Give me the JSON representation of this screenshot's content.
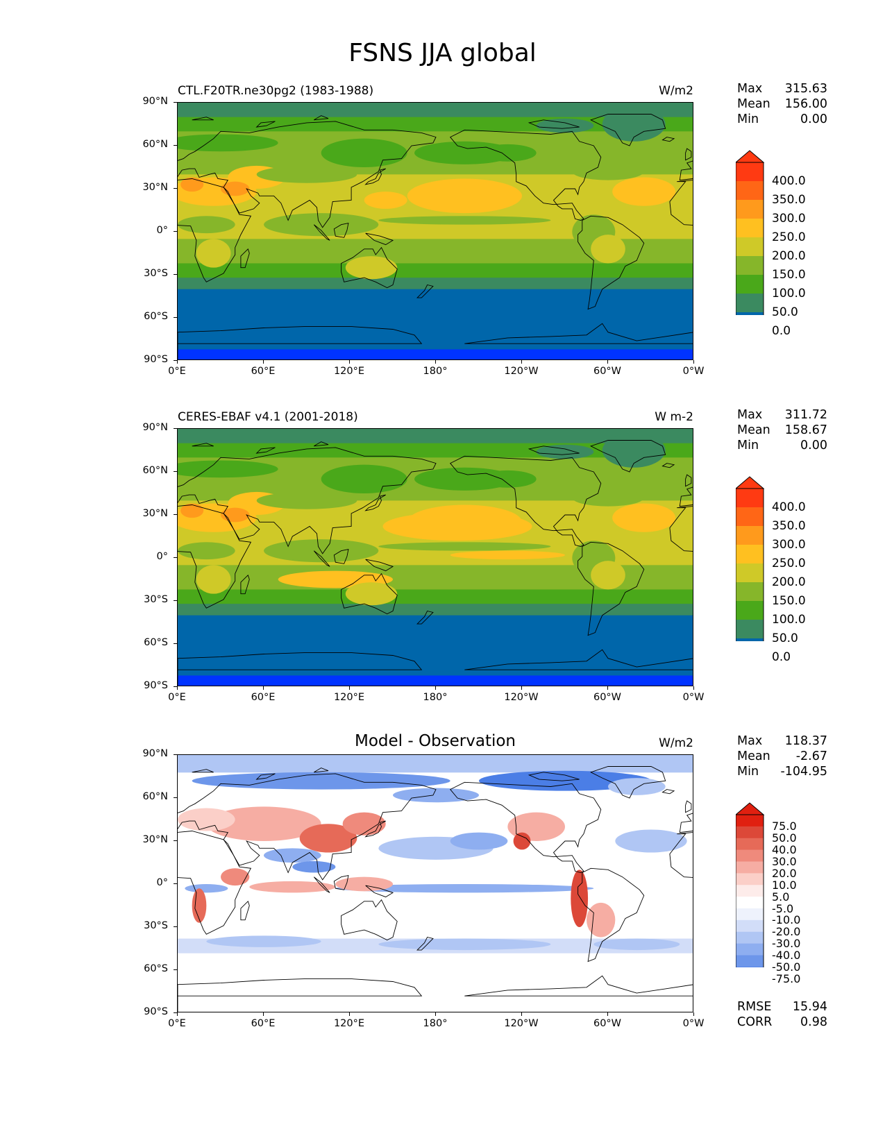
{
  "title": "FSNS JJA global",
  "colors": {
    "abs_levels": [
      "#0033ff",
      "#0066aa",
      "#3b8a60",
      "#4aa81a",
      "#86b62a",
      "#cfc928",
      "#ffc020",
      "#ff9a1c",
      "#ff6616",
      "#ff3a12"
    ],
    "diff_levels": [
      "#0f3fff",
      "#2d62f0",
      "#4b7ee6",
      "#6d96ea",
      "#8eaef0",
      "#b0c6f4",
      "#d2ddf8",
      "#eef2fc",
      "#ffffff",
      "#fdecea",
      "#fbcfc8",
      "#f6ada3",
      "#ef8a7c",
      "#e66a58",
      "#dc4838",
      "#e02010"
    ],
    "coastline": "#000000"
  },
  "axes": {
    "x_ticks": [
      "0°E",
      "60°E",
      "120°E",
      "180°",
      "120°W",
      "60°W",
      "0°W"
    ],
    "y_ticks": [
      "90°N",
      "60°N",
      "30°N",
      "0°",
      "30°S",
      "60°S",
      "90°S"
    ]
  },
  "panels": [
    {
      "left_title": "CTL.F20TR.ne30pg2 (1983-1988)",
      "right_title": "W/m2",
      "stats": {
        "max_label": "Max",
        "max": "315.63",
        "mean_label": "Mean",
        "mean": "156.00",
        "min_label": "Min",
        "min": "0.00"
      },
      "colorbar_labels": [
        "400.0",
        "350.0",
        "300.0",
        "250.0",
        "200.0",
        "150.0",
        "100.0",
        "50.0",
        "0.0"
      ]
    },
    {
      "left_title": "CERES-EBAF v4.1 (2001-2018)",
      "right_title": "W m-2",
      "stats": {
        "max_label": "Max",
        "max": "311.72",
        "mean_label": "Mean",
        "mean": "158.67",
        "min_label": "Min",
        "min": "0.00"
      },
      "colorbar_labels": [
        "400.0",
        "350.0",
        "300.0",
        "250.0",
        "200.0",
        "150.0",
        "100.0",
        "50.0",
        "0.0"
      ]
    },
    {
      "center_title": "Model - Observation",
      "right_title": "W/m2",
      "stats": {
        "max_label": "Max",
        "max": "118.37",
        "mean_label": "Mean",
        "mean": "-2.67",
        "min_label": "Min",
        "min": "-104.95"
      },
      "colorbar_labels": [
        "75.0",
        "50.0",
        "40.0",
        "30.0",
        "20.0",
        "10.0",
        "5.0",
        "-5.0",
        "-10.0",
        "-20.0",
        "-30.0",
        "-40.0",
        "-50.0",
        "-75.0"
      ],
      "rmse_label": "RMSE",
      "rmse": "15.94",
      "corr_label": "CORR",
      "corr": "0.98"
    }
  ],
  "chart_data": [
    {
      "type": "heatmap",
      "title": "CTL.F20TR.ne30pg2 (1983-1988)",
      "units": "W/m2",
      "xlim": [
        0,
        360
      ],
      "ylim": [
        -90,
        90
      ],
      "levels": [
        0,
        50,
        100,
        150,
        200,
        250,
        300,
        350,
        400
      ],
      "zonal_mean_profile": {
        "lat": [
          90,
          80,
          70,
          60,
          50,
          40,
          30,
          20,
          10,
          0,
          -10,
          -20,
          -30,
          -40,
          -50,
          -60,
          -70,
          -80,
          -90
        ],
        "value": [
          110,
          120,
          150,
          170,
          190,
          225,
          250,
          240,
          215,
          205,
          200,
          185,
          155,
          110,
          60,
          45,
          30,
          10,
          0
        ]
      },
      "max": 315.63,
      "mean": 156.0,
      "min": 0.0
    },
    {
      "type": "heatmap",
      "title": "CERES-EBAF v4.1 (2001-2018)",
      "units": "W m-2",
      "xlim": [
        0,
        360
      ],
      "ylim": [
        -90,
        90
      ],
      "levels": [
        0,
        50,
        100,
        150,
        200,
        250,
        300,
        350,
        400
      ],
      "zonal_mean_profile": {
        "lat": [
          90,
          80,
          70,
          60,
          50,
          40,
          30,
          20,
          10,
          0,
          -10,
          -20,
          -30,
          -40,
          -50,
          -60,
          -70,
          -80,
          -90
        ],
        "value": [
          110,
          125,
          155,
          170,
          185,
          220,
          255,
          245,
          215,
          200,
          205,
          190,
          160,
          110,
          60,
          45,
          30,
          10,
          0
        ]
      },
      "max": 311.72,
      "mean": 158.67,
      "min": 0.0
    },
    {
      "type": "heatmap",
      "title": "Model - Observation",
      "units": "W/m2",
      "xlim": [
        0,
        360
      ],
      "ylim": [
        -90,
        90
      ],
      "levels": [
        -75,
        -50,
        -40,
        -30,
        -20,
        -10,
        -5,
        5,
        10,
        20,
        30,
        40,
        50,
        75
      ],
      "max": 118.37,
      "mean": -2.67,
      "min": -104.95,
      "rmse": 15.94,
      "corr": 0.98
    }
  ]
}
